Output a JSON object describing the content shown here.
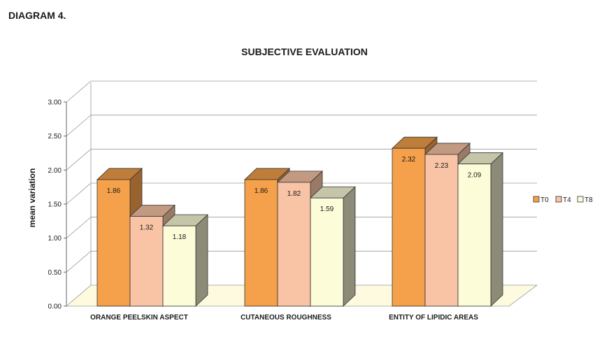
{
  "header": {
    "diagram_label": "DIAGRAM 4."
  },
  "chart_data": {
    "type": "bar",
    "title": "SUBJECTIVE EVALUATION",
    "xlabel": "",
    "ylabel": "mean variation",
    "ylim": [
      0,
      3
    ],
    "yticks": [
      "0.00",
      "0.50",
      "1.00",
      "1.50",
      "2.00",
      "2.50",
      "3.00"
    ],
    "categories": [
      "ORANGE PEELSKIN ASPECT",
      "CUTANEOUS ROUGHNESS",
      "ENTITY OF LIPIDIC AREAS"
    ],
    "series": [
      {
        "name": "T0",
        "values": [
          1.86,
          1.86,
          2.32
        ],
        "labels": [
          "1.86",
          "1.86",
          "2.32"
        ],
        "color": "#f5a04a"
      },
      {
        "name": "T4",
        "values": [
          1.32,
          1.82,
          2.23
        ],
        "labels": [
          "1.32",
          "1.82",
          "2.23"
        ],
        "color": "#f9c4a6"
      },
      {
        "name": "T8",
        "values": [
          1.18,
          1.59,
          2.09
        ],
        "labels": [
          "1.18",
          "1.59",
          "2.09"
        ],
        "color": "#fdfcd9"
      }
    ],
    "grid": true,
    "legend": "right"
  }
}
